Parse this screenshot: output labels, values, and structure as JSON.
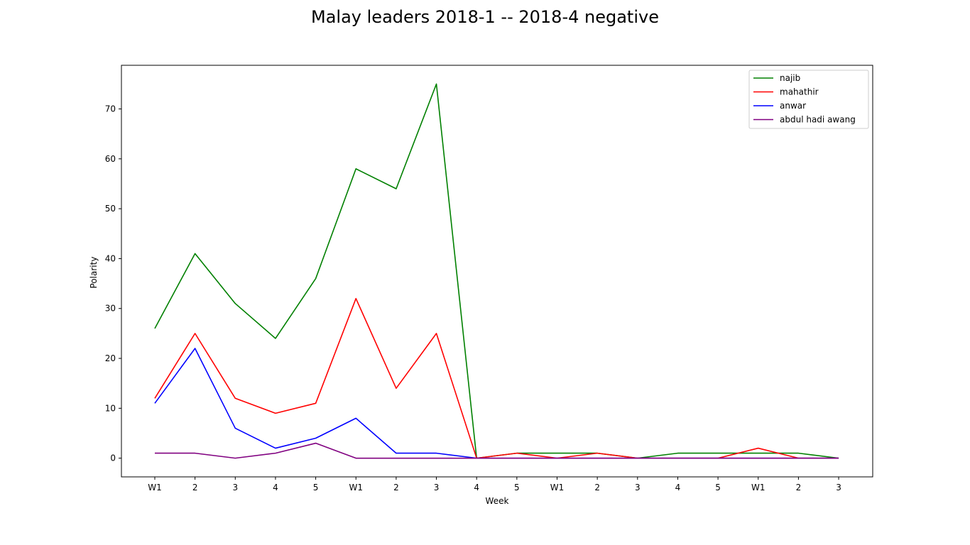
{
  "chart_data": {
    "type": "line",
    "title": "Malay leaders 2018-1 -- 2018-4 negative",
    "xlabel": "Week",
    "ylabel": "Polarity",
    "categories": [
      "W1",
      "2",
      "3",
      "4",
      "5",
      "W1",
      "2",
      "3",
      "4",
      "5",
      "W1",
      "2",
      "3",
      "4",
      "5",
      "W1",
      "2",
      "3"
    ],
    "ylim": [
      -3.75,
      78.75
    ],
    "yticks": [
      0,
      10,
      20,
      30,
      40,
      50,
      60,
      70
    ],
    "grid": false,
    "legend_position": "top-right",
    "series": [
      {
        "name": "najib",
        "color": "#008000",
        "values": [
          26,
          41,
          31,
          24,
          36,
          58,
          54,
          75,
          0,
          1,
          1,
          1,
          0,
          1,
          1,
          1,
          1,
          0
        ]
      },
      {
        "name": "mahathir",
        "color": "#ff0000",
        "values": [
          12,
          25,
          12,
          9,
          11,
          32,
          14,
          25,
          0,
          1,
          0,
          1,
          0,
          0,
          0,
          2,
          0,
          0
        ]
      },
      {
        "name": "anwar",
        "color": "#0000ff",
        "values": [
          11,
          22,
          6,
          2,
          4,
          8,
          1,
          1,
          0,
          0,
          0,
          0,
          0,
          0,
          0,
          0,
          0,
          0
        ]
      },
      {
        "name": "abdul hadi awang",
        "color": "#800080",
        "values": [
          1,
          1,
          0,
          1,
          3,
          0,
          0,
          0,
          0,
          0,
          0,
          0,
          0,
          0,
          0,
          0,
          0,
          0
        ]
      }
    ]
  }
}
